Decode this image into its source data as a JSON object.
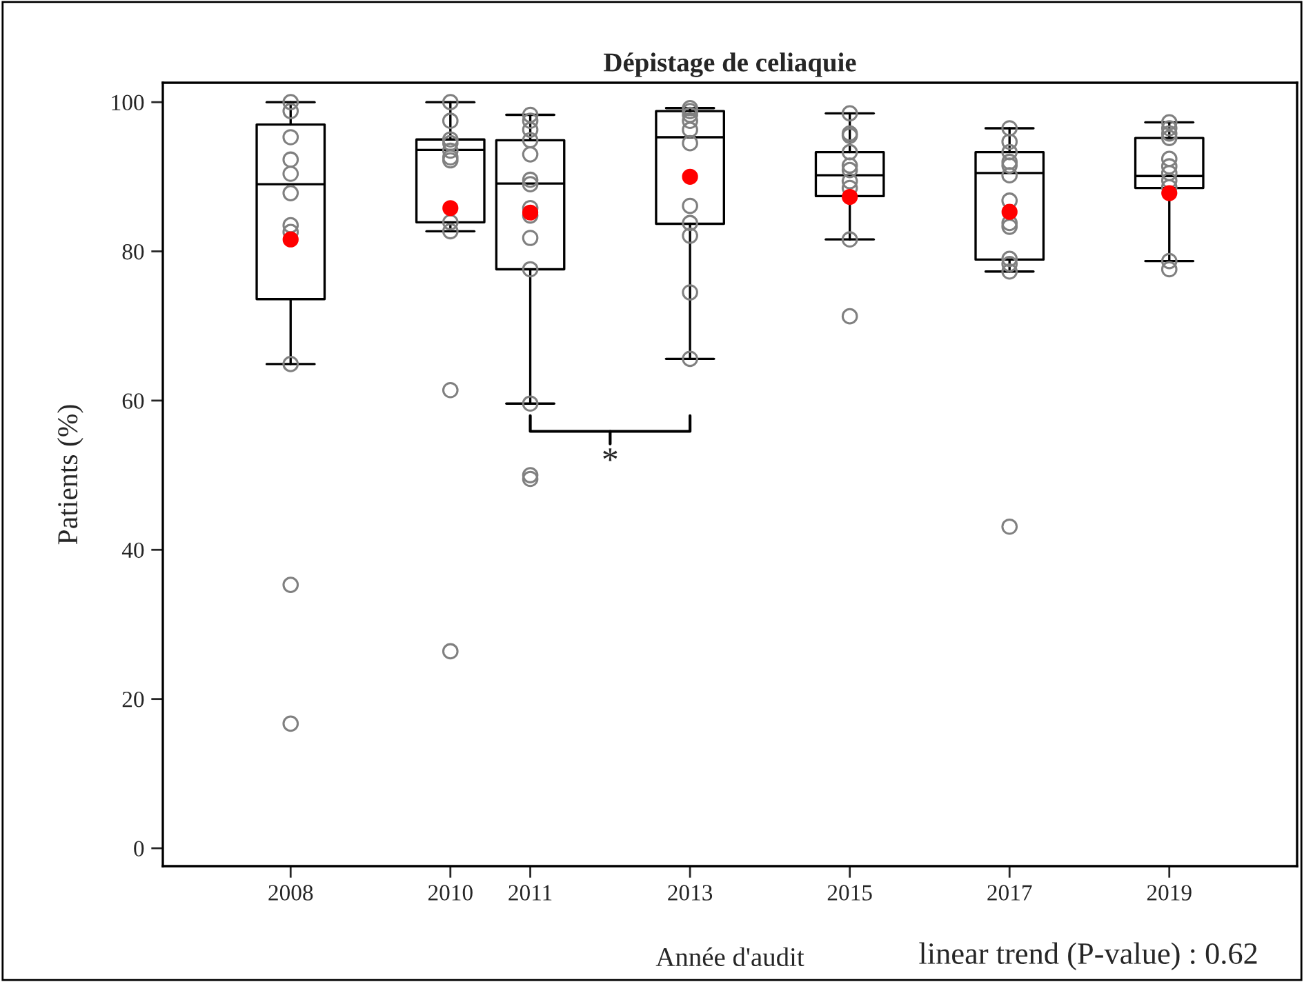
{
  "chart_data": {
    "type": "box",
    "title": "Dépistage de celiaquie",
    "xlabel": "Année d'audit",
    "ylabel": "Patients (%)",
    "x": [
      2008,
      2010,
      2011,
      2013,
      2015,
      2017,
      2019
    ],
    "xlim": [
      2006.4,
      2020.6
    ],
    "xticks": [
      2008,
      2010,
      2011,
      2013,
      2015,
      2017,
      2019
    ],
    "ylim": [
      -2.4,
      102.6
    ],
    "yticks": [
      0,
      20,
      40,
      60,
      80,
      100
    ],
    "grid": false,
    "legend": false,
    "marker": "circle",
    "series": [
      {
        "type": "box",
        "color": "#000000",
        "boxes": [
          {
            "low": 64.9,
            "q1": 73.6,
            "median": 89.0,
            "q3": 97.0,
            "high": 100
          },
          {
            "low": 82.7,
            "q1": 83.9,
            "median": 93.6,
            "q3": 95.0,
            "high": 100
          },
          {
            "low": 59.6,
            "q1": 77.6,
            "median": 89.1,
            "q3": 94.9,
            "high": 98.3
          },
          {
            "low": 65.6,
            "q1": 83.7,
            "median": 95.3,
            "q3": 98.8,
            "high": 99.2
          },
          {
            "low": 81.6,
            "q1": 87.4,
            "median": 90.2,
            "q3": 93.3,
            "high": 98.5
          },
          {
            "low": 77.3,
            "q1": 78.9,
            "median": 90.5,
            "q3": 93.3,
            "high": 96.5
          },
          {
            "low": 78.7,
            "q1": 88.5,
            "median": 90.1,
            "q3": 95.2,
            "high": 97.3
          }
        ]
      },
      {
        "type": "scatter",
        "color": "#808080",
        "x": [
          2008,
          2008,
          2008,
          2008,
          2008,
          2008,
          2008,
          2008,
          2008,
          2008,
          2008,
          2010,
          2010,
          2010,
          2010,
          2010,
          2010,
          2010,
          2010,
          2010,
          2010,
          2010,
          2011,
          2011,
          2011,
          2011,
          2011,
          2011,
          2011,
          2011,
          2011,
          2011,
          2011,
          2011,
          2011,
          2011,
          2013,
          2013,
          2013,
          2013,
          2013,
          2013,
          2013,
          2013,
          2013,
          2013,
          2013,
          2015,
          2015,
          2015,
          2015,
          2015,
          2015,
          2015,
          2015,
          2015,
          2015,
          2017,
          2017,
          2017,
          2017,
          2017,
          2017,
          2017,
          2017,
          2017,
          2017,
          2017,
          2017,
          2017,
          2019,
          2019,
          2019,
          2019,
          2019,
          2019,
          2019,
          2019,
          2019,
          2019,
          2019
        ],
        "values": [
          100,
          98.8,
          95.3,
          92.3,
          90.4,
          87.8,
          83.5,
          82.6,
          64.9,
          35.3,
          16.7,
          100,
          97.5,
          95.0,
          94.5,
          93.5,
          92.6,
          92.2,
          83.9,
          82.7,
          61.4,
          26.4,
          98.3,
          97.5,
          96.3,
          94.9,
          93.0,
          89.6,
          89.0,
          85.8,
          84.8,
          81.8,
          77.6,
          59.6,
          50.0,
          49.5,
          99.2,
          98.8,
          98.3,
          97.5,
          96.3,
          94.5,
          86.1,
          83.8,
          82.1,
          74.5,
          65.6,
          98.5,
          95.8,
          95.5,
          93.3,
          91.5,
          90.9,
          89.4,
          88.5,
          81.6,
          71.3,
          96.5,
          94.7,
          93.3,
          92.0,
          91.5,
          90.2,
          86.8,
          83.8,
          83.3,
          79.0,
          78.3,
          77.3,
          43.1,
          97.3,
          96.5,
          95.8,
          95.2,
          92.4,
          91.4,
          90.5,
          89.5,
          88.6,
          78.7,
          77.6
        ]
      },
      {
        "type": "scatter",
        "color": "#ff0000",
        "x": [
          2008,
          2010,
          2011,
          2013,
          2015,
          2017,
          2019
        ],
        "values": [
          81.6,
          85.8,
          85.2,
          90.0,
          87.3,
          85.3,
          87.8
        ]
      }
    ],
    "annotations": [
      "*",
      "linear trend (P-value) : 0.62"
    ]
  }
}
